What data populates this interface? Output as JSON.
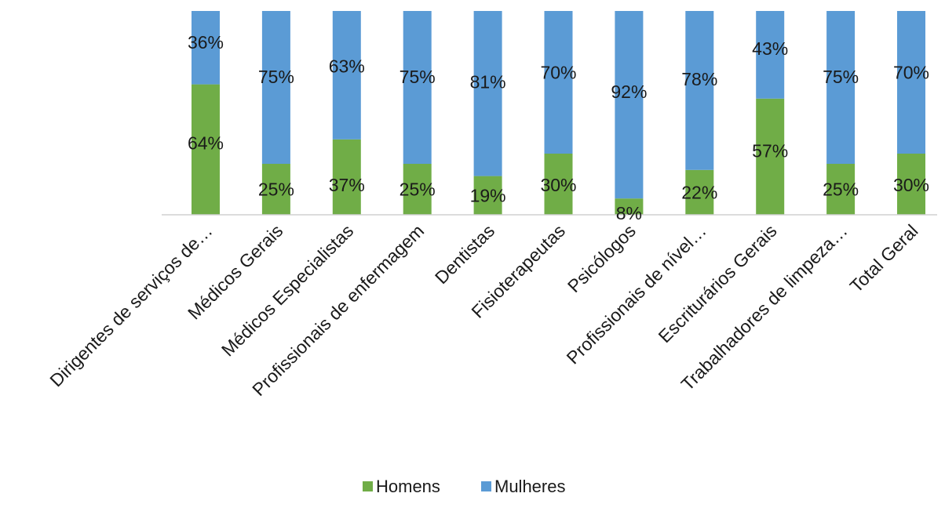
{
  "chart_data": {
    "type": "bar",
    "stacked": true,
    "percent_stacked": true,
    "categories": [
      "Dirigentes de serviços de…",
      "Médicos Gerais",
      "Médicos Especialistas",
      "Profissionais de enfermagem",
      "Dentistas",
      "Fisioterapeutas",
      "Psicólogos",
      "Profissionais de nível…",
      "Escriturários Gerais",
      "Trabalhadores de limpeza…",
      "Total Geral"
    ],
    "series": [
      {
        "name": "Homens",
        "color": "#70AD47",
        "values": [
          64,
          25,
          37,
          25,
          19,
          30,
          8,
          22,
          57,
          25,
          30
        ],
        "labels": [
          "64%",
          "25%",
          "37%",
          "25%",
          "19%",
          "30%",
          "8%",
          "22%",
          "57%",
          "25%",
          "30%"
        ]
      },
      {
        "name": "Mulheres",
        "color": "#5B9BD5",
        "values": [
          36,
          75,
          63,
          75,
          81,
          70,
          92,
          78,
          43,
          75,
          70
        ],
        "labels": [
          "36%",
          "75%",
          "63%",
          "75%",
          "81%",
          "70%",
          "92%",
          "78%",
          "43%",
          "75%",
          "70%"
        ]
      }
    ],
    "ylim": [
      0,
      100
    ],
    "grid": false,
    "legend_position": "bottom"
  }
}
